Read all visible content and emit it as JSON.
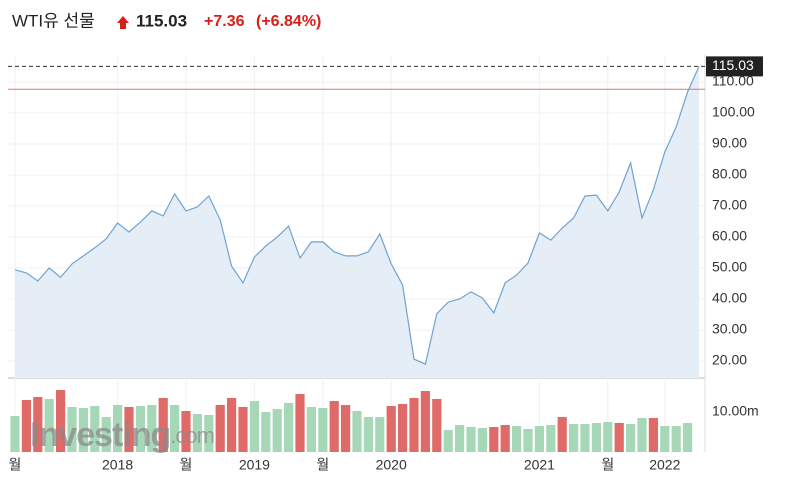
{
  "chart_data": {
    "type": "line",
    "title": "WTI유 선물",
    "price": "115.03",
    "change": "+7.36",
    "change_percent": "(+6.84%)",
    "categories": [
      "월",
      null,
      null,
      null,
      null,
      null,
      null,
      null,
      null,
      "2018",
      null,
      null,
      null,
      null,
      null,
      "월",
      null,
      null,
      null,
      null,
      null,
      "2019",
      null,
      null,
      null,
      null,
      null,
      "월",
      null,
      null,
      null,
      null,
      null,
      "2020",
      null,
      null,
      null,
      null,
      null,
      null,
      null,
      null,
      null,
      null,
      null,
      null,
      "2021",
      null,
      null,
      null,
      null,
      null,
      "월",
      null,
      null,
      null,
      null,
      "2022",
      null,
      null,
      null
    ],
    "values": [
      49.4,
      48.4,
      45.8,
      50,
      47,
      51.3,
      53.9,
      56.5,
      59.4,
      64.5,
      61.6,
      64.8,
      68.4,
      66.8,
      73.9,
      68.4,
      69.7,
      73.2,
      65.5,
      50.6,
      45.2,
      53.5,
      57.1,
      60,
      63.5,
      53.2,
      58.4,
      58.4,
      55.2,
      53.9,
      53.9,
      55.2,
      61,
      51.3,
      44.5,
      20.6,
      19,
      35.2,
      39,
      40,
      42.3,
      40.3,
      35.5,
      45.2,
      47.7,
      51.6,
      61.3,
      59,
      62.9,
      66.1,
      73.2,
      73.5,
      68.4,
      74.5,
      83.9,
      66.1,
      75.2,
      87.4,
      95.5,
      106.8,
      115.03
    ],
    "color": "#6fa3d2",
    "fill_color": "#e5edf6",
    "ylim": [
      14.5,
      118.7
    ],
    "yticks": [
      {
        "value": 20,
        "label": "20.00"
      },
      {
        "value": 30,
        "label": "30.00"
      },
      {
        "value": 40,
        "label": "40.00"
      },
      {
        "value": 50,
        "label": "50.00"
      },
      {
        "value": 60,
        "label": "60.00"
      },
      {
        "value": 70,
        "label": "70.00"
      },
      {
        "value": 80,
        "label": "80.00"
      },
      {
        "value": 90,
        "label": "90.00"
      },
      {
        "value": 100,
        "label": "100.00"
      },
      {
        "value": 110,
        "label": "110.00"
      }
    ],
    "grid": true,
    "reference_line": {
      "value": 107.67,
      "color": "#e8746e"
    },
    "volume": {
      "values": [
        9,
        13,
        13.75,
        13.25,
        15.5,
        11.25,
        11,
        11.5,
        8.75,
        11.75,
        11.25,
        11.5,
        11.75,
        13.5,
        11.75,
        10.25,
        9.5,
        9.25,
        11.75,
        13.5,
        11.25,
        12.75,
        10,
        10.75,
        12.25,
        14.5,
        11.25,
        11,
        12.75,
        11.75,
        10.25,
        8.75,
        8.75,
        11.5,
        12,
        13.5,
        15.25,
        13.25,
        5.5,
        6.75,
        6.25,
        6,
        6.25,
        6.75,
        6.5,
        5.75,
        6.5,
        6.75,
        8.75,
        7,
        7,
        7.25,
        7.5,
        7.25,
        7,
        8.5,
        8.5,
        6.5,
        6.5,
        7.25,
        null
      ],
      "colors": [
        "#a6d8b8",
        "#e06a68",
        "#e06a68",
        "#a6d8b8",
        "#e06a68",
        "#a6d8b8",
        "#a6d8b8",
        "#a6d8b8",
        "#a6d8b8",
        "#a6d8b8",
        "#e06a68",
        "#a6d8b8",
        "#a6d8b8",
        "#e06a68",
        "#a6d8b8",
        "#e06a68",
        "#a6d8b8",
        "#a6d8b8",
        "#e06a68",
        "#e06a68",
        "#e06a68",
        "#a6d8b8",
        "#a6d8b8",
        "#a6d8b8",
        "#a6d8b8",
        "#e06a68",
        "#a6d8b8",
        "#a6d8b8",
        "#e06a68",
        "#e06a68",
        "#a6d8b8",
        "#a6d8b8",
        "#a6d8b8",
        "#e06a68",
        "#e06a68",
        "#e06a68",
        "#e06a68",
        "#e06a68",
        "#a6d8b8",
        "#a6d8b8",
        "#a6d8b8",
        "#a6d8b8",
        "#e06a68",
        "#e06a68",
        "#a6d8b8",
        "#a6d8b8",
        "#a6d8b8",
        "#a6d8b8",
        "#e06a68",
        "#a6d8b8",
        "#a6d8b8",
        "#a6d8b8",
        "#a6d8b8",
        "#e06a68",
        "#a6d8b8",
        "#a6d8b8",
        "#e06a68",
        "#a6d8b8",
        "#a6d8b8",
        "#a6d8b8",
        "#a6d8b8"
      ],
      "ylim": [
        0,
        18
      ],
      "yticks": [
        {
          "value": 10,
          "label": "10.00m"
        }
      ]
    },
    "watermark": [
      "Investing",
      ".com"
    ]
  }
}
